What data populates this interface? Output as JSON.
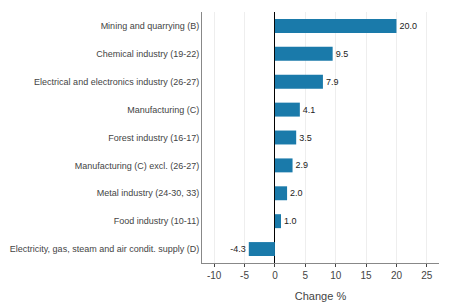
{
  "chart_data": {
    "type": "bar",
    "orientation": "horizontal",
    "categories": [
      "Electricity, gas, steam and air condit. supply (D)",
      "Food industry (10-11)",
      "Metal industry (24-30, 33)",
      "Manufacturing (C) excl. (26-27)",
      "Forest industry (16-17)",
      "Manufacturing (C)",
      "Electrical and electronics industry (26-27)",
      "Chemical industry (19-22)",
      "Mining and quarrying (B)"
    ],
    "values": [
      -4.3,
      1.0,
      2.0,
      2.9,
      3.5,
      4.1,
      7.9,
      9.5,
      20.0
    ],
    "value_labels": [
      "-4.3",
      "1.0",
      "2.0",
      "2.9",
      "3.5",
      "4.1",
      "7.9",
      "9.5",
      "20.0"
    ],
    "data_labels": true,
    "color": "#1a7aaa",
    "xlabel": "Change %",
    "xlim": [
      -12,
      27
    ],
    "xticks": [
      -10,
      -5,
      0,
      5,
      10,
      15,
      20,
      25
    ],
    "grid": true
  }
}
